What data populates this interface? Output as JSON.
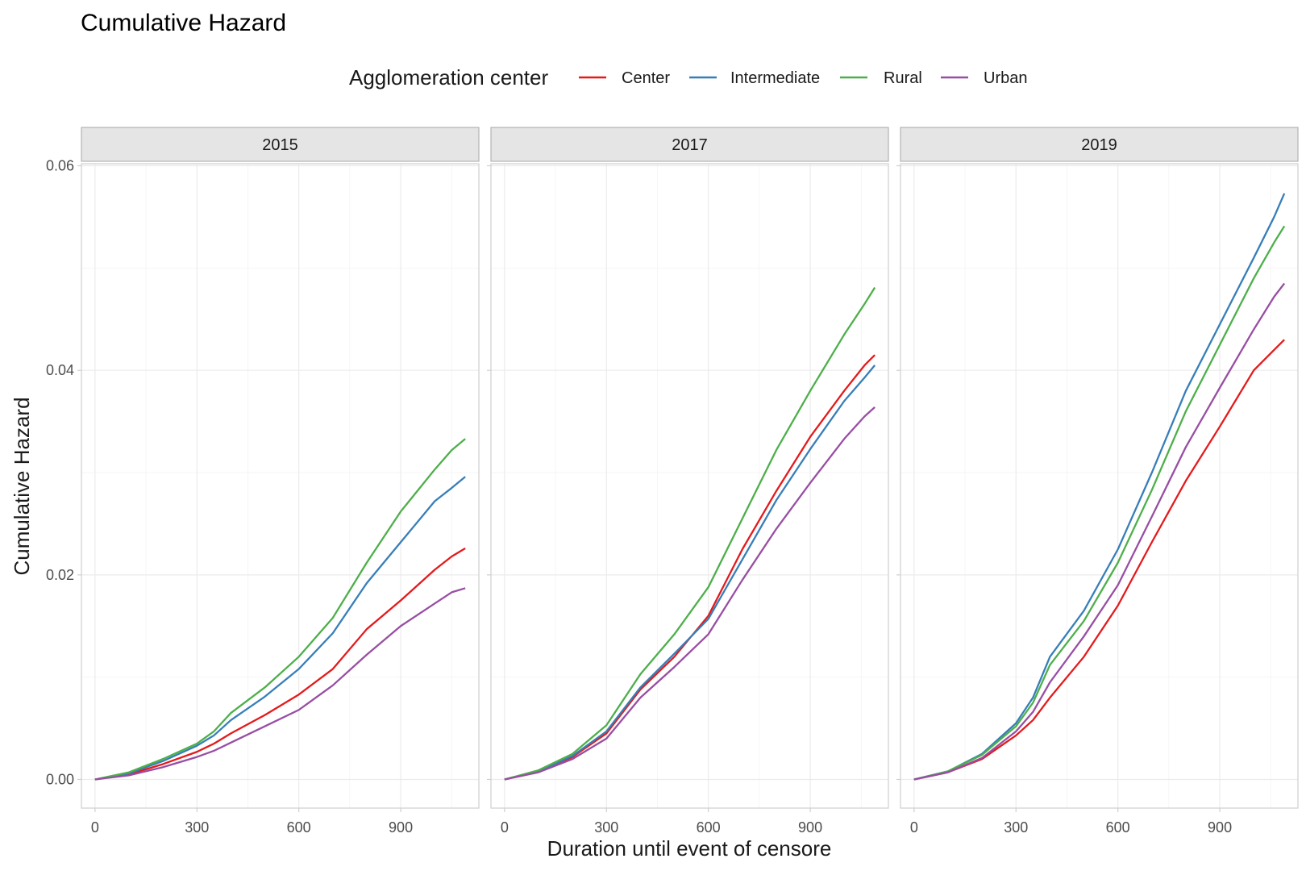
{
  "chart_data": {
    "type": "line",
    "title": "Cumulative Hazard",
    "xlabel": "Duration until event of censore",
    "ylabel": "Cumulative Hazard",
    "xlim": [
      -40,
      1130
    ],
    "ylim": [
      -0.0028,
      0.0602
    ],
    "x_ticks": [
      0,
      300,
      600,
      900
    ],
    "x_tick_labels": [
      "0",
      "300",
      "600",
      "900"
    ],
    "y_ticks": [
      0,
      0.02,
      0.04,
      0.06
    ],
    "y_tick_labels": [
      "0.00",
      "0.02",
      "0.04",
      "0.06"
    ],
    "grid": true,
    "legend": {
      "title": "Agglomeration center",
      "position": "top",
      "entries": [
        {
          "name": "Center",
          "color": "#e41a1c"
        },
        {
          "name": "Intermediate",
          "color": "#377eb8"
        },
        {
          "name": "Rural",
          "color": "#4daf4a"
        },
        {
          "name": "Urban",
          "color": "#984ea3"
        }
      ]
    },
    "facets": [
      {
        "label": "2015",
        "series": [
          {
            "name": "Center",
            "x": [
              0,
              100,
              200,
              300,
              350,
              400,
              500,
              600,
              700,
              800,
              900,
              1000,
              1050,
              1090
            ],
            "y": [
              0,
              0.0005,
              0.0015,
              0.0027,
              0.0035,
              0.0045,
              0.0063,
              0.0083,
              0.0108,
              0.0147,
              0.0175,
              0.0205,
              0.0218,
              0.0226
            ]
          },
          {
            "name": "Intermediate",
            "x": [
              0,
              100,
              200,
              300,
              350,
              400,
              500,
              600,
              700,
              800,
              900,
              1000,
              1050,
              1090
            ],
            "y": [
              0,
              0.0006,
              0.0018,
              0.0033,
              0.0043,
              0.0058,
              0.0081,
              0.0108,
              0.0143,
              0.0192,
              0.0232,
              0.0272,
              0.0285,
              0.0296
            ]
          },
          {
            "name": "Rural",
            "x": [
              0,
              100,
              200,
              300,
              350,
              400,
              500,
              600,
              700,
              800,
              900,
              1000,
              1050,
              1090
            ],
            "y": [
              0,
              0.0007,
              0.002,
              0.0035,
              0.0047,
              0.0065,
              0.009,
              0.012,
              0.0158,
              0.0212,
              0.0262,
              0.0303,
              0.0322,
              0.0333
            ]
          },
          {
            "name": "Urban",
            "x": [
              0,
              100,
              200,
              300,
              350,
              400,
              500,
              600,
              700,
              800,
              900,
              1000,
              1050,
              1090
            ],
            "y": [
              0,
              0.0004,
              0.0012,
              0.0022,
              0.0028,
              0.0036,
              0.0052,
              0.0068,
              0.0092,
              0.0122,
              0.015,
              0.0172,
              0.0183,
              0.0187
            ]
          }
        ]
      },
      {
        "label": "2017",
        "series": [
          {
            "name": "Center",
            "x": [
              0,
              100,
              200,
              300,
              400,
              500,
              600,
              700,
              800,
              900,
              1000,
              1060,
              1090
            ],
            "y": [
              0,
              0.0008,
              0.0022,
              0.0045,
              0.0088,
              0.012,
              0.016,
              0.0225,
              0.0282,
              0.0335,
              0.038,
              0.0405,
              0.0415
            ]
          },
          {
            "name": "Intermediate",
            "x": [
              0,
              100,
              200,
              300,
              400,
              500,
              600,
              700,
              800,
              900,
              1000,
              1060,
              1090
            ],
            "y": [
              0,
              0.0008,
              0.0023,
              0.0047,
              0.009,
              0.0123,
              0.0157,
              0.0215,
              0.0273,
              0.0323,
              0.037,
              0.0393,
              0.0405
            ]
          },
          {
            "name": "Rural",
            "x": [
              0,
              100,
              200,
              300,
              400,
              500,
              600,
              700,
              800,
              900,
              1000,
              1060,
              1090
            ],
            "y": [
              0,
              0.0009,
              0.0025,
              0.0053,
              0.0103,
              0.0142,
              0.0188,
              0.0255,
              0.0322,
              0.038,
              0.0435,
              0.0465,
              0.0481
            ]
          },
          {
            "name": "Urban",
            "x": [
              0,
              100,
              200,
              300,
              400,
              500,
              600,
              700,
              800,
              900,
              1000,
              1060,
              1090
            ],
            "y": [
              0,
              0.0007,
              0.002,
              0.004,
              0.008,
              0.011,
              0.0142,
              0.0195,
              0.0245,
              0.029,
              0.0333,
              0.0355,
              0.0364
            ]
          }
        ]
      },
      {
        "label": "2019",
        "series": [
          {
            "name": "Center",
            "x": [
              0,
              100,
              200,
              300,
              350,
              400,
              500,
              600,
              700,
              800,
              900,
              1000,
              1060,
              1090
            ],
            "y": [
              0,
              0.0007,
              0.002,
              0.0043,
              0.0058,
              0.008,
              0.012,
              0.017,
              0.0232,
              0.0292,
              0.0345,
              0.04,
              0.042,
              0.043
            ]
          },
          {
            "name": "Intermediate",
            "x": [
              0,
              100,
              200,
              300,
              350,
              400,
              500,
              600,
              700,
              800,
              900,
              1000,
              1060,
              1090
            ],
            "y": [
              0,
              0.0008,
              0.0025,
              0.0055,
              0.008,
              0.012,
              0.0165,
              0.0225,
              0.03,
              0.038,
              0.0445,
              0.051,
              0.055,
              0.0573
            ]
          },
          {
            "name": "Rural",
            "x": [
              0,
              100,
              200,
              300,
              350,
              400,
              500,
              600,
              700,
              800,
              900,
              1000,
              1060,
              1090
            ],
            "y": [
              0,
              0.0008,
              0.0024,
              0.0052,
              0.0075,
              0.0112,
              0.0155,
              0.0212,
              0.0283,
              0.036,
              0.0425,
              0.049,
              0.0525,
              0.0541
            ]
          },
          {
            "name": "Urban",
            "x": [
              0,
              100,
              200,
              300,
              350,
              400,
              500,
              600,
              700,
              800,
              900,
              1000,
              1060,
              1090
            ],
            "y": [
              0,
              0.0007,
              0.0021,
              0.0047,
              0.0066,
              0.0095,
              0.014,
              0.019,
              0.0257,
              0.0325,
              0.0383,
              0.044,
              0.0472,
              0.0485
            ]
          }
        ]
      }
    ]
  }
}
